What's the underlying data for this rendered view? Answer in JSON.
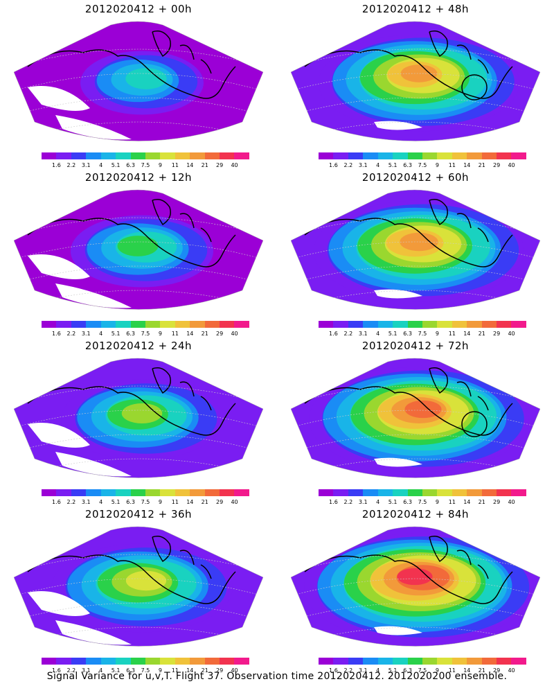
{
  "panels": [
    {
      "title": "2012020412 + 00h",
      "blob": 0.35,
      "tone": "low"
    },
    {
      "title": "2012020412 + 48h",
      "blob": 0.75,
      "tone": "high",
      "circle": true
    },
    {
      "title": "2012020412 + 12h",
      "blob": 0.45,
      "tone": "low"
    },
    {
      "title": "2012020412 + 60h",
      "blob": 0.8,
      "tone": "high"
    },
    {
      "title": "2012020412 + 24h",
      "blob": 0.55,
      "tone": "mid"
    },
    {
      "title": "2012020412 + 72h",
      "blob": 0.85,
      "tone": "high",
      "circle": true
    },
    {
      "title": "2012020412 + 36h",
      "blob": 0.65,
      "tone": "mid"
    },
    {
      "title": "2012020412 + 84h",
      "blob": 0.9,
      "tone": "high"
    }
  ],
  "colorbar": {
    "labels": [
      "1.6",
      "2.2",
      "3.1",
      "4",
      "5.1",
      "6.3",
      "7.5",
      "9",
      "11",
      "14",
      "21",
      "29",
      "40"
    ],
    "colors": [
      "#9b00d6",
      "#7a1df2",
      "#3a3cf5",
      "#1a8cf5",
      "#19b4e8",
      "#19d2c0",
      "#2ad14a",
      "#9ad72f",
      "#d9e23a",
      "#f0c23a",
      "#f29a3a",
      "#f26a3a",
      "#f2334f",
      "#f21a8c"
    ]
  },
  "footer": "Signal Variance for u,v,T. Flight 37. Observation time 2012020412. 2012020200 ensemble."
}
